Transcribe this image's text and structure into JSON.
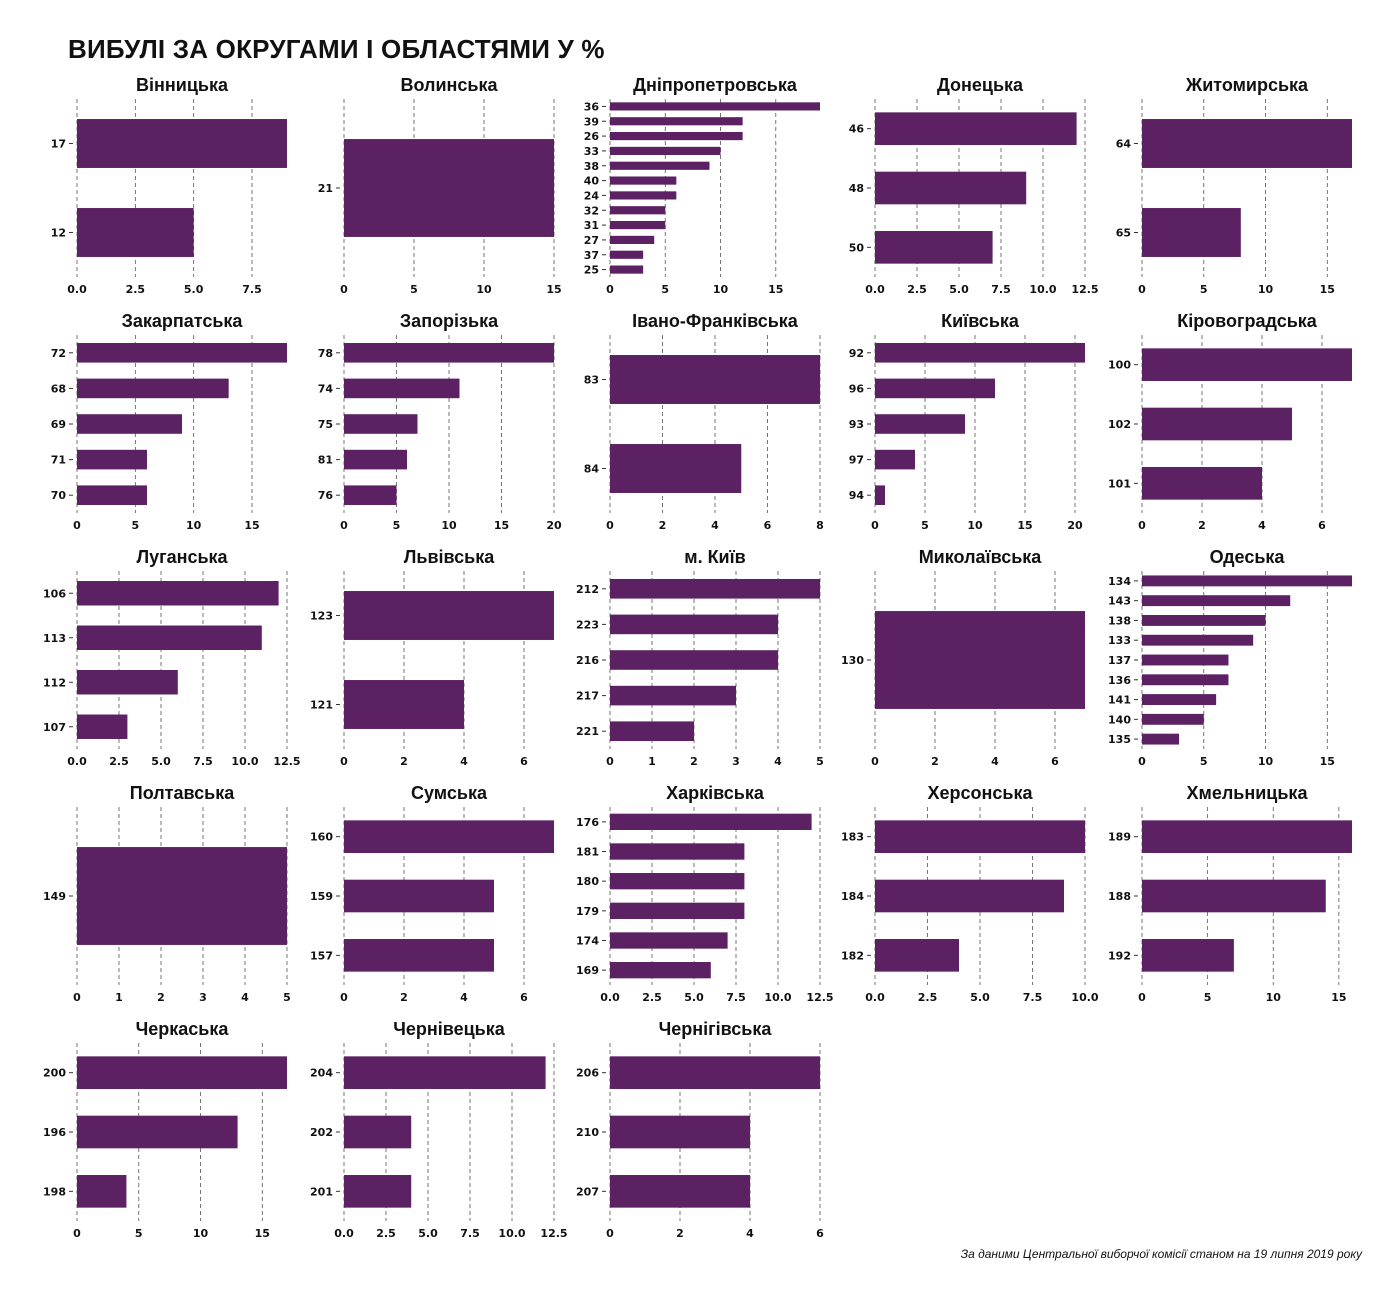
{
  "title": "ВИБУЛІ ЗА ОКРУГАМИ І ОБЛАСТЯМИ У %",
  "caption": "За даними Центральної виборчої комісії станом на 19 липня 2019 року",
  "colors": {
    "bar": "#5c2163",
    "grid": "#555555",
    "text": "#111111"
  },
  "chart_data": [
    {
      "type": "bar",
      "orientation": "horizontal",
      "title": "Вінницька",
      "categories": [
        "17",
        "12"
      ],
      "values": [
        9,
        5
      ],
      "xlim": [
        0,
        9
      ],
      "xticks": [
        "0.0",
        "2.5",
        "5.0",
        "7.5"
      ]
    },
    {
      "type": "bar",
      "orientation": "horizontal",
      "title": "Волинська",
      "categories": [
        "21"
      ],
      "values": [
        15
      ],
      "xlim": [
        0,
        15
      ],
      "xticks": [
        "0",
        "5",
        "10",
        "15"
      ]
    },
    {
      "type": "bar",
      "orientation": "horizontal",
      "title": "Дніпропетровська",
      "categories": [
        "36",
        "39",
        "26",
        "33",
        "38",
        "40",
        "24",
        "32",
        "31",
        "27",
        "37",
        "25"
      ],
      "values": [
        19,
        12,
        12,
        10,
        9,
        6,
        6,
        5,
        5,
        4,
        3,
        3
      ],
      "xlim": [
        0,
        19
      ],
      "xticks": [
        "0",
        "5",
        "10",
        "15"
      ]
    },
    {
      "type": "bar",
      "orientation": "horizontal",
      "title": "Донецька",
      "categories": [
        "46",
        "48",
        "50"
      ],
      "values": [
        12,
        9,
        7
      ],
      "xlim": [
        0,
        12.5
      ],
      "xticks": [
        "0.0",
        "2.5",
        "5.0",
        "7.5",
        "10.0",
        "12.5"
      ]
    },
    {
      "type": "bar",
      "orientation": "horizontal",
      "title": "Житомирська",
      "categories": [
        "64",
        "65"
      ],
      "values": [
        17,
        8
      ],
      "xlim": [
        0,
        17
      ],
      "xticks": [
        "0",
        "5",
        "10",
        "15"
      ]
    },
    {
      "type": "bar",
      "orientation": "horizontal",
      "title": "Закарпатська",
      "categories": [
        "72",
        "68",
        "69",
        "71",
        "70"
      ],
      "values": [
        18,
        13,
        9,
        6,
        6
      ],
      "xlim": [
        0,
        18
      ],
      "xticks": [
        "0",
        "5",
        "10",
        "15"
      ]
    },
    {
      "type": "bar",
      "orientation": "horizontal",
      "title": "Запорізька",
      "categories": [
        "78",
        "74",
        "75",
        "81",
        "76"
      ],
      "values": [
        20,
        11,
        7,
        6,
        5
      ],
      "xlim": [
        0,
        20
      ],
      "xticks": [
        "0",
        "5",
        "10",
        "15",
        "20"
      ]
    },
    {
      "type": "bar",
      "orientation": "horizontal",
      "title": "Івано-Франківська",
      "categories": [
        "83",
        "84"
      ],
      "values": [
        8,
        5
      ],
      "xlim": [
        0,
        8
      ],
      "xticks": [
        "0",
        "2",
        "4",
        "6",
        "8"
      ]
    },
    {
      "type": "bar",
      "orientation": "horizontal",
      "title": "Київська",
      "categories": [
        "92",
        "96",
        "93",
        "97",
        "94"
      ],
      "values": [
        21,
        12,
        9,
        4,
        1
      ],
      "xlim": [
        0,
        21
      ],
      "xticks": [
        "0",
        "5",
        "10",
        "15",
        "20"
      ]
    },
    {
      "type": "bar",
      "orientation": "horizontal",
      "title": "Кіровоградська",
      "categories": [
        "100",
        "102",
        "101"
      ],
      "values": [
        7,
        5,
        4
      ],
      "xlim": [
        0,
        7
      ],
      "xticks": [
        "0",
        "2",
        "4",
        "6"
      ]
    },
    {
      "type": "bar",
      "orientation": "horizontal",
      "title": "Луганська",
      "categories": [
        "106",
        "113",
        "112",
        "107"
      ],
      "values": [
        12,
        11,
        6,
        3
      ],
      "xlim": [
        0,
        12.5
      ],
      "xticks": [
        "0.0",
        "2.5",
        "5.0",
        "7.5",
        "10.0",
        "12.5"
      ]
    },
    {
      "type": "bar",
      "orientation": "horizontal",
      "title": "Львівська",
      "categories": [
        "123",
        "121"
      ],
      "values": [
        7,
        4
      ],
      "xlim": [
        0,
        7
      ],
      "xticks": [
        "0",
        "2",
        "4",
        "6"
      ]
    },
    {
      "type": "bar",
      "orientation": "horizontal",
      "title": "м. Київ",
      "categories": [
        "212",
        "223",
        "216",
        "217",
        "221"
      ],
      "values": [
        5,
        4,
        4,
        3,
        2
      ],
      "xlim": [
        0,
        5
      ],
      "xticks": [
        "0",
        "1",
        "2",
        "3",
        "4",
        "5"
      ]
    },
    {
      "type": "bar",
      "orientation": "horizontal",
      "title": "Миколаївська",
      "categories": [
        "130"
      ],
      "values": [
        7
      ],
      "xlim": [
        0,
        7
      ],
      "xticks": [
        "0",
        "2",
        "4",
        "6"
      ]
    },
    {
      "type": "bar",
      "orientation": "horizontal",
      "title": "Одеська",
      "categories": [
        "134",
        "143",
        "138",
        "133",
        "137",
        "136",
        "141",
        "140",
        "135"
      ],
      "values": [
        17,
        12,
        10,
        9,
        7,
        7,
        6,
        5,
        3
      ],
      "xlim": [
        0,
        17
      ],
      "xticks": [
        "0",
        "5",
        "10",
        "15"
      ]
    },
    {
      "type": "bar",
      "orientation": "horizontal",
      "title": "Полтавська",
      "categories": [
        "149"
      ],
      "values": [
        5
      ],
      "xlim": [
        0,
        5
      ],
      "xticks": [
        "0",
        "1",
        "2",
        "3",
        "4",
        "5"
      ]
    },
    {
      "type": "bar",
      "orientation": "horizontal",
      "title": "Сумська",
      "categories": [
        "160",
        "159",
        "157"
      ],
      "values": [
        7,
        5,
        5
      ],
      "xlim": [
        0,
        7
      ],
      "xticks": [
        "0",
        "2",
        "4",
        "6"
      ]
    },
    {
      "type": "bar",
      "orientation": "horizontal",
      "title": "Харківська",
      "categories": [
        "176",
        "181",
        "180",
        "179",
        "174",
        "169"
      ],
      "values": [
        12,
        8,
        8,
        8,
        7,
        6
      ],
      "xlim": [
        0,
        12.5
      ],
      "xticks": [
        "0.0",
        "2.5",
        "5.0",
        "7.5",
        "10.0",
        "12.5"
      ]
    },
    {
      "type": "bar",
      "orientation": "horizontal",
      "title": "Херсонська",
      "categories": [
        "183",
        "184",
        "182"
      ],
      "values": [
        10,
        9,
        4
      ],
      "xlim": [
        0,
        10
      ],
      "xticks": [
        "0.0",
        "2.5",
        "5.0",
        "7.5",
        "10.0"
      ]
    },
    {
      "type": "bar",
      "orientation": "horizontal",
      "title": "Хмельницька",
      "categories": [
        "189",
        "188",
        "192"
      ],
      "values": [
        16,
        14,
        7
      ],
      "xlim": [
        0,
        16
      ],
      "xticks": [
        "0",
        "5",
        "10",
        "15"
      ]
    },
    {
      "type": "bar",
      "orientation": "horizontal",
      "title": "Черкаська",
      "categories": [
        "200",
        "196",
        "198"
      ],
      "values": [
        17,
        13,
        4
      ],
      "xlim": [
        0,
        17
      ],
      "xticks": [
        "0",
        "5",
        "10",
        "15"
      ]
    },
    {
      "type": "bar",
      "orientation": "horizontal",
      "title": "Чернівецька",
      "categories": [
        "204",
        "202",
        "201"
      ],
      "values": [
        12,
        4,
        4
      ],
      "xlim": [
        0,
        12.5
      ],
      "xticks": [
        "0.0",
        "2.5",
        "5.0",
        "7.5",
        "10.0",
        "12.5"
      ]
    },
    {
      "type": "bar",
      "orientation": "horizontal",
      "title": "Чернігівська",
      "categories": [
        "206",
        "210",
        "207"
      ],
      "values": [
        6,
        4,
        4
      ],
      "xlim": [
        0,
        6
      ],
      "xticks": [
        "0",
        "2",
        "4",
        "6"
      ]
    }
  ]
}
